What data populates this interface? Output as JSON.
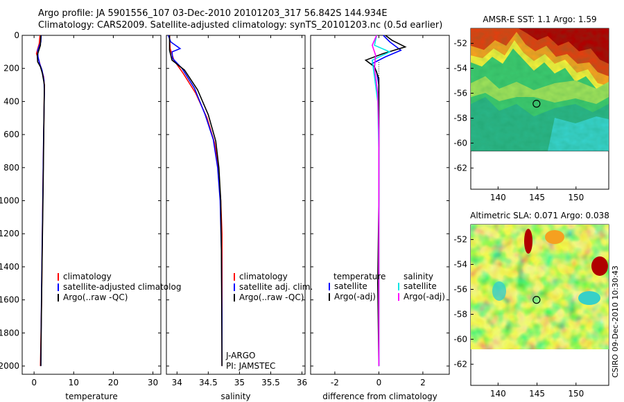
{
  "header": {
    "line1": "Argo profile: JA 5901556_107 03-Dec-2010 20101203_317 56.842S 144.934E",
    "line2": "Climatology: CARS2009. Satellite-adjusted climatology: synTS_20101203.nc (0.5d earlier)"
  },
  "stamp": "CSIRO 09-Dec-2010 10:30:43",
  "colors": {
    "climatology": "#ff0000",
    "satellite": "#0000ff",
    "argo": "#000000",
    "sat_salinity": "#00e5e5",
    "argo_salinity_diff": "#ff00ff"
  },
  "chart_data": [
    {
      "type": "line",
      "panel": "temperature",
      "xlabel": "temperature",
      "ylabel": "",
      "xlim": [
        -3,
        32
      ],
      "ylim": [
        2050,
        0
      ],
      "xticks": [
        "0",
        "10",
        "20",
        "30"
      ],
      "yticks": [
        "0",
        "200",
        "400",
        "600",
        "800",
        "1000",
        "1200",
        "1400",
        "1600",
        "1800",
        "2000"
      ],
      "legend": [
        "climatology",
        "satellite-adjusted climatolog",
        "Argo(..raw -QC)"
      ],
      "series": [
        {
          "name": "climatology",
          "color": "#ff0000",
          "points": [
            [
              1.5,
              0
            ],
            [
              1.3,
              50
            ],
            [
              0.6,
              110
            ],
            [
              1.2,
              150
            ],
            [
              1.8,
              200
            ],
            [
              2.4,
              250
            ],
            [
              2.6,
              300
            ],
            [
              2.5,
              500
            ],
            [
              2.3,
              800
            ],
            [
              2.1,
              1200
            ],
            [
              1.9,
              1600
            ],
            [
              1.6,
              2000
            ]
          ]
        },
        {
          "name": "satellite-adjusted climatolog",
          "color": "#0000ff",
          "points": [
            [
              1.8,
              0
            ],
            [
              1.7,
              40
            ],
            [
              0.9,
              90
            ],
            [
              1.0,
              130
            ],
            [
              1.4,
              170
            ],
            [
              2.0,
              210
            ],
            [
              2.5,
              270
            ],
            [
              2.6,
              350
            ],
            [
              2.4,
              600
            ],
            [
              2.2,
              1000
            ],
            [
              1.9,
              1500
            ],
            [
              1.7,
              2000
            ]
          ]
        },
        {
          "name": "Argo(..raw -QC)",
          "color": "#000000",
          "points": [
            [
              1.7,
              0
            ],
            [
              1.6,
              60
            ],
            [
              0.8,
              120
            ],
            [
              0.9,
              160
            ],
            [
              1.6,
              190
            ],
            [
              2.1,
              230
            ],
            [
              2.6,
              300
            ],
            [
              2.5,
              500
            ],
            [
              2.3,
              900
            ],
            [
              2.0,
              1400
            ],
            [
              1.8,
              1800
            ],
            [
              1.7,
              2000
            ]
          ]
        }
      ]
    },
    {
      "type": "line",
      "panel": "salinity",
      "xlabel": "salinity",
      "xlim": [
        33.83,
        36.05
      ],
      "ylim": [
        2050,
        0
      ],
      "xticks": [
        "34",
        "34.5",
        "35",
        "35.5",
        "36"
      ],
      "legend": [
        "climatology",
        "satellite adj. clim.",
        "Argo(..raw -QC)"
      ],
      "annotations": [
        "J-ARGO",
        "PI: JAMSTEC"
      ],
      "series": [
        {
          "name": "climatology",
          "color": "#ff0000",
          "points": [
            [
              33.88,
              0
            ],
            [
              33.89,
              80
            ],
            [
              33.95,
              150
            ],
            [
              34.1,
              230
            ],
            [
              34.3,
              350
            ],
            [
              34.48,
              500
            ],
            [
              34.6,
              650
            ],
            [
              34.66,
              800
            ],
            [
              34.7,
              1000
            ],
            [
              34.72,
              1200
            ],
            [
              34.72,
              1600
            ],
            [
              34.72,
              2000
            ]
          ]
        },
        {
          "name": "satellite adj. clim.",
          "color": "#0000ff",
          "points": [
            [
              33.86,
              0
            ],
            [
              33.9,
              40
            ],
            [
              34.05,
              80
            ],
            [
              33.92,
              100
            ],
            [
              33.93,
              140
            ],
            [
              34.08,
              200
            ],
            [
              34.28,
              320
            ],
            [
              34.45,
              480
            ],
            [
              34.58,
              630
            ],
            [
              34.65,
              800
            ],
            [
              34.69,
              1000
            ],
            [
              34.71,
              1300
            ],
            [
              34.72,
              1700
            ],
            [
              34.72,
              2000
            ]
          ]
        },
        {
          "name": "Argo(..raw -QC)",
          "color": "#000000",
          "points": [
            [
              33.88,
              0
            ],
            [
              33.88,
              90
            ],
            [
              33.92,
              150
            ],
            [
              34.12,
              210
            ],
            [
              34.33,
              330
            ],
            [
              34.5,
              480
            ],
            [
              34.62,
              640
            ],
            [
              34.67,
              800
            ],
            [
              34.7,
              1000
            ],
            [
              34.71,
              1300
            ],
            [
              34.72,
              2000
            ]
          ]
        }
      ]
    },
    {
      "type": "line",
      "panel": "difference",
      "xlabel": "difference from climatology",
      "xlim": [
        -3.1,
        3.2
      ],
      "ylim": [
        2050,
        0
      ],
      "xticks": [
        "-2",
        "0",
        "2"
      ],
      "legend_temperature": {
        "title": "temperature",
        "items": [
          "satellite",
          "Argo(-adj)"
        ]
      },
      "legend_salinity": {
        "title": "salinity",
        "items": [
          "satellite",
          "Argo(-adj)"
        ]
      },
      "series": [
        {
          "name": "temperature satellite",
          "color": "#0000ff",
          "points": [
            [
              0.2,
              0
            ],
            [
              0.5,
              40
            ],
            [
              1.0,
              90
            ],
            [
              0.3,
              130
            ],
            [
              -0.3,
              170
            ],
            [
              -0.1,
              220
            ],
            [
              0.0,
              300
            ],
            [
              0.0,
              800
            ],
            [
              0.0,
              2000
            ]
          ]
        },
        {
          "name": "temperature Argo(-adj)",
          "color": "#000000",
          "points": [
            [
              0.3,
              0
            ],
            [
              0.6,
              30
            ],
            [
              1.2,
              70
            ],
            [
              0.2,
              110
            ],
            [
              -0.6,
              150
            ],
            [
              -0.2,
              190
            ],
            [
              0.0,
              260
            ],
            [
              0.0,
              1000
            ],
            [
              -0.05,
              1500
            ],
            [
              0.0,
              2000
            ]
          ]
        },
        {
          "name": "salinity satellite",
          "color": "#00e5e5",
          "points": [
            [
              -0.1,
              0
            ],
            [
              -0.2,
              60
            ],
            [
              0.5,
              100
            ],
            [
              -0.3,
              150
            ],
            [
              -0.2,
              250
            ],
            [
              -0.05,
              400
            ],
            [
              0.0,
              700
            ],
            [
              0.0,
              2000
            ]
          ]
        },
        {
          "name": "salinity Argo(-adj)",
          "color": "#ff00ff",
          "points": [
            [
              -0.1,
              0
            ],
            [
              -0.3,
              60
            ],
            [
              -0.15,
              120
            ],
            [
              -0.2,
              200
            ],
            [
              -0.05,
              350
            ],
            [
              0.0,
              600
            ],
            [
              0.0,
              2000
            ]
          ]
        }
      ]
    },
    {
      "type": "heatmap",
      "panel": "sst_map",
      "title": "AMSR-E SST: 1.1 Argo: 1.59",
      "xlim": [
        136.5,
        154.2
      ],
      "ylim": [
        -63.7,
        -50.8
      ],
      "xticks": [
        "140",
        "145",
        "150"
      ],
      "yticks": [
        "-52",
        "-54",
        "-56",
        "-58",
        "-60",
        "-62"
      ],
      "marker": {
        "lon": 144.934,
        "lat": -56.842
      }
    },
    {
      "type": "heatmap",
      "panel": "sla_map",
      "title": "Altimetric SLA: 0.071 Argo: 0.038",
      "xlim": [
        136.5,
        154.2
      ],
      "ylim": [
        -63.7,
        -50.8
      ],
      "xticks": [
        "140",
        "145",
        "150"
      ],
      "yticks": [
        "-52",
        "-54",
        "-56",
        "-58",
        "-60",
        "-62"
      ],
      "marker": {
        "lon": 144.934,
        "lat": -56.842
      }
    }
  ]
}
